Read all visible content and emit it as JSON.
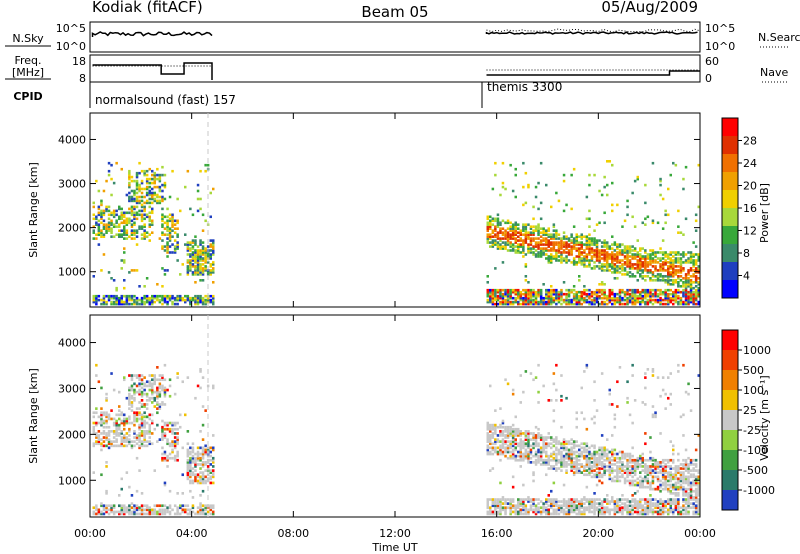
{
  "header": {
    "station": "Kodiak (fitACF)",
    "beam": "Beam 05",
    "date": "05/Aug/2009"
  },
  "top_panels": {
    "nsky_label": "N.Sky",
    "nsky_ticks": [
      "10^5",
      "10^0"
    ],
    "nsearch_label": "N.Search",
    "nsearch_ticks": [
      "10^5",
      "10^0"
    ],
    "freq_label_1": "Freq.",
    "freq_label_2": "[MHz]",
    "freq_ticks": [
      "18",
      "8"
    ],
    "nave_label": "Nave",
    "nave_ticks": [
      "60",
      "0"
    ],
    "cpid_label": "CPID",
    "cpid_1": "normalsound (fast) 157",
    "cpid_2": "themis 3300"
  },
  "power_colorbar": {
    "label": "Power [dB]",
    "ticks": [
      "28",
      "24",
      "20",
      "16",
      "12",
      "8",
      "4"
    ],
    "colors": [
      "#0000ff",
      "#1f3fbf",
      "#3a8a6a",
      "#38a83a",
      "#a8d83a",
      "#f0d000",
      "#f0a000",
      "#f07000",
      "#e03000",
      "#ff0000"
    ]
  },
  "velocity_colorbar": {
    "label": "Velocity [m s⁻¹]",
    "ticks": [
      "1000",
      "500",
      "100",
      "25",
      "-25",
      "-100",
      "-500",
      "-1000"
    ],
    "colors": [
      "#2040c0",
      "#2a7a6a",
      "#40a040",
      "#90d040",
      "#c8c8c8",
      "#f0c000",
      "#f08000",
      "#f04000",
      "#ff0000"
    ]
  },
  "chart_data": [
    {
      "type": "heatmap",
      "name": "power",
      "xlabel": "",
      "ylabel": "Slant Range [km]",
      "yticks": [
        "1000",
        "2000",
        "3000",
        "4000"
      ],
      "ylim": [
        200,
        4600
      ],
      "xlim_hours": [
        0,
        24
      ],
      "data_gap_hours": [
        4.8,
        15.6
      ],
      "clim": [
        0,
        30
      ],
      "unit": "dB"
    },
    {
      "type": "heatmap",
      "name": "velocity",
      "xlabel": "Time UT",
      "ylabel": "Slant Range [km]",
      "yticks": [
        "1000",
        "2000",
        "3000",
        "4000"
      ],
      "ylim": [
        200,
        4600
      ],
      "xlim_hours": [
        0,
        24
      ],
      "xticks": [
        "00:00",
        "04:00",
        "08:00",
        "12:00",
        "16:00",
        "20:00",
        "00:00"
      ],
      "data_gap_hours": [
        4.8,
        15.6
      ],
      "clim": [
        -1000,
        1000
      ],
      "unit": "m s-1"
    }
  ]
}
